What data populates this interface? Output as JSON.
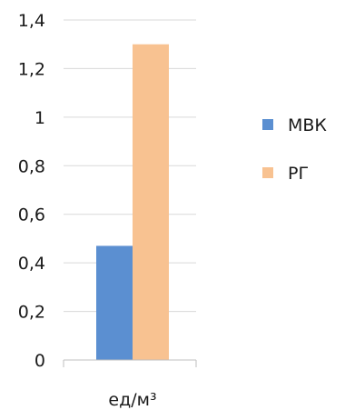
{
  "chart_data": {
    "type": "bar",
    "categories": [
      "ед/м³"
    ],
    "series": [
      {
        "name": "МВК",
        "values": [
          0.47
        ],
        "color": "#5b8fd1"
      },
      {
        "name": "РГ",
        "values": [
          1.3
        ],
        "color": "#f8c291"
      }
    ],
    "yticks": [
      "0",
      "0,2",
      "0,4",
      "0,6",
      "0,8",
      "1",
      "1,2",
      "1,4"
    ],
    "ylim": [
      0,
      1.4
    ],
    "grid": true,
    "legend_position": "right",
    "title": "",
    "xlabel": "",
    "ylabel": ""
  }
}
